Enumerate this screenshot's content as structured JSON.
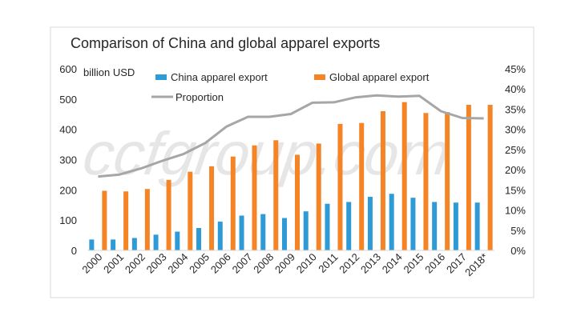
{
  "chart_data": {
    "type": "bar",
    "title": "Comparison of China and global apparel exports",
    "unit_label": "billion USD",
    "categories": [
      "2000",
      "2001",
      "2002",
      "2003",
      "2004",
      "2005",
      "2006",
      "2007",
      "2008",
      "2009",
      "2010",
      "2011",
      "2012",
      "2013",
      "2014",
      "2015",
      "2016",
      "2017",
      "2018*"
    ],
    "series": [
      {
        "name": "China apparel export",
        "type": "bar",
        "axis": "left",
        "color": "#2E9BD6",
        "values": [
          36,
          36,
          41,
          52,
          62,
          74,
          95,
          115,
          120,
          107,
          129,
          154,
          160,
          177,
          187,
          174,
          160,
          158,
          158
        ]
      },
      {
        "name": "Global apparel export",
        "type": "bar",
        "axis": "left",
        "color": "#F58426",
        "values": [
          197,
          195,
          203,
          233,
          260,
          278,
          310,
          347,
          364,
          316,
          353,
          418,
          421,
          460,
          490,
          454,
          457,
          481,
          481
        ]
      },
      {
        "name": "Proportion",
        "type": "line",
        "axis": "right",
        "color": "#A6A6A6",
        "values": [
          18.3,
          18.8,
          20.3,
          22.2,
          23.9,
          26.6,
          30.7,
          33.1,
          33.1,
          33.8,
          36.6,
          36.7,
          37.9,
          38.4,
          38.1,
          38.3,
          34.5,
          32.8,
          32.7
        ]
      }
    ],
    "y_left": {
      "min": 0,
      "max": 600,
      "ticks": [
        "0",
        "100",
        "200",
        "300",
        "400",
        "500",
        "600"
      ]
    },
    "y_right": {
      "min": 0,
      "max": 45,
      "ticks": [
        "0%",
        "5%",
        "10%",
        "15%",
        "20%",
        "25%",
        "30%",
        "35%",
        "40%",
        "45%"
      ]
    },
    "grid": false,
    "legend_position": "top"
  },
  "watermark": "ccfgroup.com"
}
